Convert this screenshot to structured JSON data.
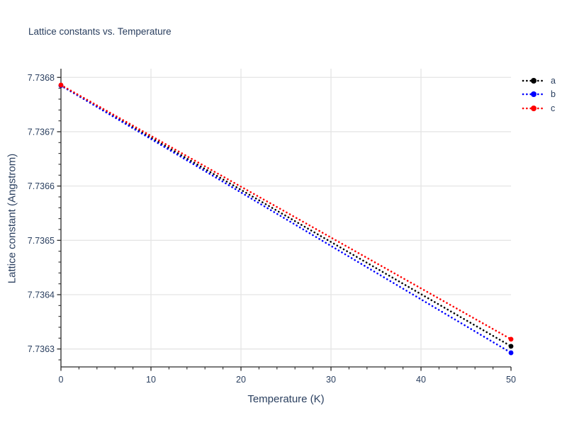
{
  "chart_data": {
    "type": "line",
    "title": "Lattice constants vs. Temperature",
    "xlabel": "Temperature (K)",
    "ylabel": "Lattice constant (Angstrom)",
    "xlim": [
      0,
      50
    ],
    "ylim": [
      7.736267,
      7.736816
    ],
    "x_major_ticks": [
      0,
      10,
      20,
      30,
      40,
      50
    ],
    "x_tick_labels": [
      "0",
      "10",
      "20",
      "30",
      "40",
      "50"
    ],
    "x_minor_step": 2,
    "y_major_ticks": [
      7.7363,
      7.7364,
      7.7365,
      7.7366,
      7.7367,
      7.7368
    ],
    "y_tick_labels": [
      "7.7363",
      "7.7364",
      "7.7365",
      "7.7366",
      "7.7367",
      "7.7368"
    ],
    "y_minor_step": 2e-05,
    "grid": true,
    "legend_position": "top-right-outside",
    "colors": {
      "text": "#2a3f5f",
      "grid": "#e5e5e5",
      "axis": "#2a2a2a",
      "background": "#ffffff"
    },
    "line_style": "dot",
    "marker": "circle",
    "series": [
      {
        "name": "a",
        "color": "#000000",
        "x": [
          0,
          50
        ],
        "y": [
          7.736785,
          7.736305
        ]
      },
      {
        "name": "b",
        "color": "#0000ff",
        "x": [
          0,
          50
        ],
        "y": [
          7.736785,
          7.736293
        ]
      },
      {
        "name": "c",
        "color": "#ff0000",
        "x": [
          0,
          50
        ],
        "y": [
          7.736786,
          7.736318
        ]
      }
    ]
  }
}
